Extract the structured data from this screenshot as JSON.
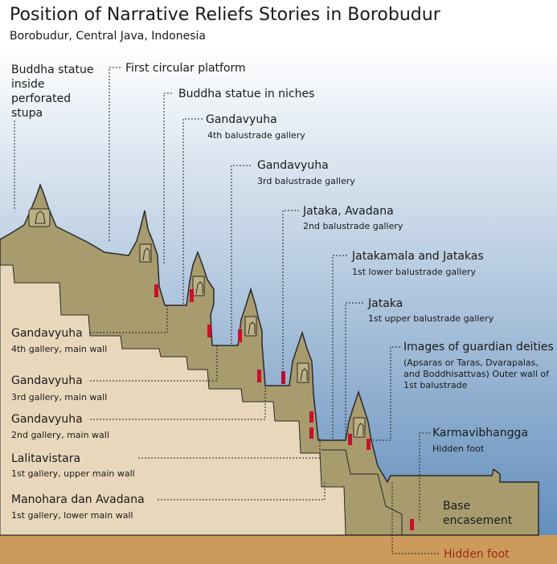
{
  "header": {
    "title": "Position of Narrative Reliefs Stories in Borobudur",
    "subtitle": "Borobudur, Central Java, Indonesia"
  },
  "colors": {
    "sky_top": "#ffffff",
    "sky_bottom": "#5f8cbb",
    "ground": "#cc9a5a",
    "monument": "#a89b6e",
    "inner_fill": "#e9d7bb",
    "relief_marker": "#c8102e",
    "leader_line": "#222222"
  },
  "callouts": {
    "buddha_stupa": "Buddha statue\ninside\nperforated\nstupa",
    "first_circular": "First circular platform",
    "buddha_niches": "Buddha statue in niches",
    "gandavyuha_4bal": {
      "title": "Gandavyuha",
      "detail": "4th balustrade gallery"
    },
    "gandavyuha_3bal": {
      "title": "Gandavyuha",
      "detail": "3rd balustrade gallery"
    },
    "jataka_avadana": {
      "title": "Jataka, Avadana",
      "detail": "2nd balustrade gallery"
    },
    "jatakamala": {
      "title": "Jatakamala and Jatakas",
      "detail": "1st lower balustrade gallery"
    },
    "jataka_upper": {
      "title": "Jataka",
      "detail": "1st upper balustrade gallery"
    },
    "guardians": {
      "title": "Images of guardian deities",
      "detail": "(Apsaras or Taras, Dvarapalas,\nand Boddhisattvas) Outer wall of\n1st balustrade"
    },
    "karmavibhangga": {
      "title": "Karmavibhangga",
      "detail": "Hidden foot"
    },
    "base": "Base\nencasement",
    "hidden_foot": "Hidden foot"
  },
  "left_labels": [
    {
      "title": "Gandavyuha",
      "detail": "4th gallery, main wall"
    },
    {
      "title": "Gandavyuha",
      "detail": "3rd gallery, main wall"
    },
    {
      "title": "Gandavyuha",
      "detail": "2nd gallery, main wall"
    },
    {
      "title": "Lalitavistara",
      "detail": "1st gallery, upper main wall"
    },
    {
      "title": "Manohara dan Avadana",
      "detail": "1st gallery, lower main wall"
    }
  ]
}
